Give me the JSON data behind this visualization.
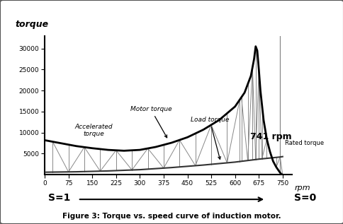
{
  "title": "Figure 3: Torque vs. speed curve of induction motor.",
  "ylabel": "torque",
  "xlabel": "rpm",
  "xlim": [
    0,
    780
  ],
  "ylim": [
    0,
    33000
  ],
  "xticks": [
    0,
    75,
    150,
    225,
    300,
    375,
    450,
    525,
    600,
    675,
    750
  ],
  "yticks": [
    5000,
    10000,
    15000,
    20000,
    25000,
    30000
  ],
  "rated_rpm": 741,
  "rated_torque": 4200,
  "s1_label": "S=1",
  "s0_label": "S=0",
  "rpm_label": "rpm",
  "motor_torque_label": "Motor torque",
  "load_torque_label": "Load torque",
  "accel_torque_label": "Accelerated\ntorque",
  "rated_torque_label": "Rated torque",
  "rpm_value_label": "741 rpm",
  "bg_color": "#ffffff",
  "motor_torque_color": "#000000",
  "load_torque_color": "#333333",
  "zigzag_color": "#888888",
  "rated_line_color": "#888888",
  "motor_rpm": [
    0,
    50,
    100,
    150,
    200,
    250,
    300,
    350,
    400,
    450,
    500,
    550,
    600,
    630,
    650,
    660,
    665,
    670,
    675,
    680,
    690,
    700,
    710,
    720,
    730,
    740,
    745,
    750
  ],
  "motor_torque": [
    8200,
    7500,
    6800,
    6300,
    5900,
    5700,
    5900,
    6600,
    7600,
    8900,
    10700,
    13000,
    16200,
    19500,
    23500,
    27500,
    30500,
    29500,
    25000,
    20000,
    13000,
    8500,
    5500,
    3200,
    1800,
    700,
    200,
    0
  ],
  "load_rpm": [
    0,
    100,
    200,
    300,
    400,
    500,
    600,
    675,
    741,
    750
  ],
  "load_torque": [
    600,
    700,
    900,
    1200,
    1700,
    2300,
    3000,
    3700,
    4200,
    4300
  ],
  "zigzag_rpms": [
    25,
    75,
    125,
    175,
    225,
    275,
    325,
    375,
    425,
    475,
    525,
    575,
    615
  ],
  "peak_rpms": [
    620,
    640,
    655,
    665,
    675,
    685,
    700,
    715,
    730,
    742,
    750
  ]
}
